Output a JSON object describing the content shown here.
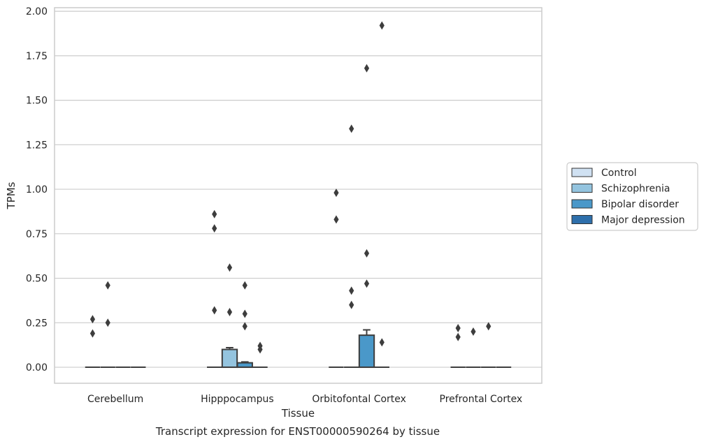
{
  "caption": "Transcript expression for ENST00000590264 by tissue",
  "chart_data": {
    "type": "box",
    "title": "",
    "xlabel": "Tissue",
    "ylabel": "TPMs",
    "ylim": [
      -0.09,
      2.02
    ],
    "yticks": [
      "0.00",
      "0.25",
      "0.50",
      "0.75",
      "1.00",
      "1.25",
      "1.50",
      "1.75",
      "2.00"
    ],
    "grid": "horizontal",
    "legend_position": "right",
    "categories": [
      "Cerebellum",
      "Hipppocampus",
      "Orbitofontal Cortex",
      "Prefrontal Cortex"
    ],
    "series": [
      {
        "name": "Control",
        "color": "#d0e1f2",
        "boxes": [
          {
            "q1": 0,
            "median": 0,
            "q3": 0,
            "whisker_high": 0,
            "outliers": [
              0.27,
              0.19
            ]
          },
          {
            "q1": 0,
            "median": 0,
            "q3": 0,
            "whisker_high": 0,
            "outliers": [
              0.86,
              0.78,
              0.32
            ]
          },
          {
            "q1": 0,
            "median": 0,
            "q3": 0,
            "whisker_high": 0,
            "outliers": [
              0.98,
              0.83
            ]
          },
          {
            "q1": 0,
            "median": 0,
            "q3": 0,
            "whisker_high": 0,
            "outliers": [
              0.22,
              0.17
            ]
          }
        ]
      },
      {
        "name": "Schizophrenia",
        "color": "#94c4df",
        "boxes": [
          {
            "q1": 0,
            "median": 0,
            "q3": 0,
            "whisker_high": 0,
            "outliers": [
              0.46,
              0.25
            ]
          },
          {
            "q1": 0,
            "median": 0,
            "q3": 0.1,
            "whisker_high": 0.11,
            "outliers": [
              0.56,
              0.31
            ]
          },
          {
            "q1": 0,
            "median": 0,
            "q3": 0,
            "whisker_high": 0,
            "outliers": [
              1.34,
              0.43,
              0.35
            ]
          },
          {
            "q1": 0,
            "median": 0,
            "q3": 0,
            "whisker_high": 0,
            "outliers": [
              0.2
            ]
          }
        ]
      },
      {
        "name": "Bipolar disorder",
        "color": "#4a98c9",
        "boxes": [
          {
            "q1": 0,
            "median": 0,
            "q3": 0,
            "whisker_high": 0,
            "outliers": []
          },
          {
            "q1": 0,
            "median": 0,
            "q3": 0.025,
            "whisker_high": 0.03,
            "outliers": [
              0.46,
              0.3,
              0.23
            ]
          },
          {
            "q1": 0,
            "median": 0,
            "q3": 0.18,
            "whisker_high": 0.21,
            "outliers": [
              1.68,
              0.64,
              0.47
            ]
          },
          {
            "q1": 0,
            "median": 0,
            "q3": 0,
            "whisker_high": 0,
            "outliers": [
              0.23
            ]
          }
        ]
      },
      {
        "name": "Major depression",
        "color": "#2e6fab",
        "boxes": [
          {
            "q1": 0,
            "median": 0,
            "q3": 0,
            "whisker_high": 0,
            "outliers": []
          },
          {
            "q1": 0,
            "median": 0,
            "q3": 0,
            "whisker_high": 0,
            "outliers": [
              0.12,
              0.1
            ]
          },
          {
            "q1": 0,
            "median": 0,
            "q3": 0,
            "whisker_high": 0,
            "outliers": [
              1.92,
              0.14
            ]
          },
          {
            "q1": 0,
            "median": 0,
            "q3": 0,
            "whisker_high": 0,
            "outliers": []
          }
        ]
      }
    ]
  }
}
